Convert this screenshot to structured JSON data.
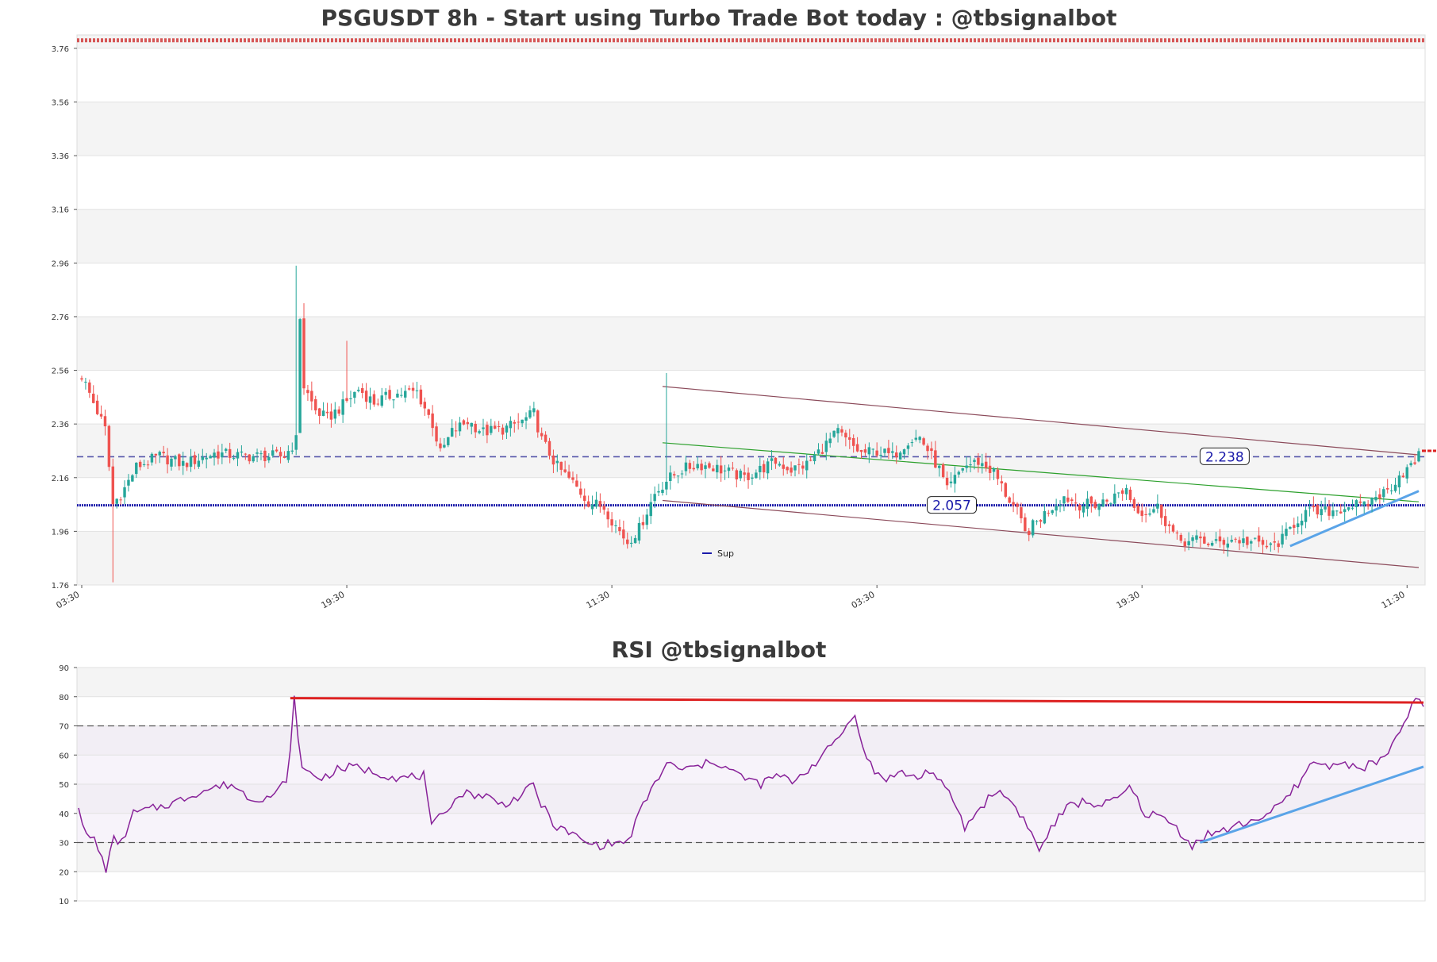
{
  "chart_data": [
    {
      "type": "candlestick",
      "title": "PSGUSDT 8h - Start using Turbo Trade Bot today : @tbsignalbot",
      "ylim": [
        1.76,
        3.81
      ],
      "y_ticks": [
        "1.76",
        "1.96",
        "2.16",
        "2.36",
        "2.56",
        "2.76",
        "2.96",
        "3.16",
        "3.36",
        "3.56",
        "3.76"
      ],
      "x_ticks": [
        {
          "label": "03:30",
          "index": 0
        },
        {
          "label": "19:30",
          "index": 68
        },
        {
          "label": "11:30",
          "index": 136
        },
        {
          "label": "03:30",
          "index": 204
        },
        {
          "label": "19:30",
          "index": 272
        },
        {
          "label": "11:30",
          "index": 340
        }
      ],
      "n_candles": 344,
      "grid": true,
      "background_bands": true,
      "colors": {
        "up": "#26a69a",
        "down": "#ef5350",
        "band": "#f4f4f4"
      },
      "key_points": [
        [
          0,
          2.54
        ],
        [
          6,
          2.34
        ],
        [
          8,
          2.06
        ],
        [
          11,
          2.12
        ],
        [
          14,
          2.2
        ],
        [
          20,
          2.24
        ],
        [
          26,
          2.21
        ],
        [
          34,
          2.25
        ],
        [
          42,
          2.24
        ],
        [
          48,
          2.24
        ],
        [
          52,
          2.24
        ],
        [
          55,
          2.3
        ],
        [
          56,
          2.76
        ],
        [
          57,
          2.5
        ],
        [
          60,
          2.41
        ],
        [
          63,
          2.38
        ],
        [
          67,
          2.43
        ],
        [
          71,
          2.49
        ],
        [
          75,
          2.44
        ],
        [
          80,
          2.47
        ],
        [
          86,
          2.48
        ],
        [
          90,
          2.36
        ],
        [
          92,
          2.25
        ],
        [
          95,
          2.33
        ],
        [
          99,
          2.37
        ],
        [
          103,
          2.33
        ],
        [
          108,
          2.34
        ],
        [
          113,
          2.37
        ],
        [
          116,
          2.4
        ],
        [
          118,
          2.3
        ],
        [
          122,
          2.2
        ],
        [
          126,
          2.14
        ],
        [
          130,
          2.07
        ],
        [
          134,
          2.05
        ],
        [
          137,
          1.98
        ],
        [
          140,
          1.92
        ],
        [
          143,
          1.97
        ],
        [
          147,
          2.1
        ],
        [
          150,
          2.15
        ],
        [
          154,
          2.19
        ],
        [
          158,
          2.21
        ],
        [
          162,
          2.2
        ],
        [
          166,
          2.18
        ],
        [
          170,
          2.16
        ],
        [
          174,
          2.19
        ],
        [
          178,
          2.22
        ],
        [
          182,
          2.19
        ],
        [
          186,
          2.21
        ],
        [
          190,
          2.27
        ],
        [
          194,
          2.33
        ],
        [
          196,
          2.3
        ],
        [
          200,
          2.25
        ],
        [
          204,
          2.26
        ],
        [
          208,
          2.24
        ],
        [
          212,
          2.3
        ],
        [
          215,
          2.31
        ],
        [
          218,
          2.24
        ],
        [
          220,
          2.19
        ],
        [
          222,
          2.11
        ],
        [
          226,
          2.2
        ],
        [
          230,
          2.22
        ],
        [
          234,
          2.18
        ],
        [
          237,
          2.1
        ],
        [
          240,
          2.03
        ],
        [
          242,
          1.95
        ],
        [
          244,
          1.98
        ],
        [
          248,
          2.04
        ],
        [
          252,
          2.09
        ],
        [
          256,
          2.06
        ],
        [
          260,
          2.06
        ],
        [
          264,
          2.08
        ],
        [
          268,
          2.12
        ],
        [
          270,
          2.05
        ],
        [
          273,
          2.03
        ],
        [
          276,
          2.05
        ],
        [
          278,
          2.0
        ],
        [
          281,
          1.93
        ],
        [
          284,
          1.92
        ],
        [
          287,
          1.93
        ],
        [
          290,
          1.91
        ],
        [
          295,
          1.93
        ],
        [
          300,
          1.92
        ],
        [
          305,
          1.9
        ],
        [
          308,
          1.93
        ],
        [
          311,
          1.99
        ],
        [
          314,
          2.03
        ],
        [
          318,
          2.03
        ],
        [
          322,
          2.04
        ],
        [
          326,
          2.06
        ],
        [
          329,
          2.05
        ],
        [
          332,
          2.09
        ],
        [
          335,
          2.11
        ],
        [
          338,
          2.17
        ],
        [
          341,
          2.2
        ],
        [
          343,
          2.24
        ]
      ],
      "spikes": [
        {
          "index": 8,
          "low": 1.77
        },
        {
          "index": 55,
          "high": 2.95
        },
        {
          "index": 57,
          "high": 2.81
        },
        {
          "index": 68,
          "high": 2.67
        },
        {
          "index": 150,
          "high": 2.55
        }
      ],
      "horizontal_lines": [
        {
          "y": 2.238,
          "label": "2.238",
          "label_index": 293,
          "color": "#5555aa",
          "style": "dashed"
        },
        {
          "y": 2.057,
          "label": "2.057",
          "label_index": 223,
          "color": "#1a1aaa",
          "style": "dotted"
        }
      ],
      "trend_lines": [
        {
          "x": [
            149,
            343
          ],
          "y": [
            2.5,
            2.245
          ],
          "color": "#8b4a5a"
        },
        {
          "x": [
            149,
            343
          ],
          "y": [
            2.075,
            1.825
          ],
          "color": "#8b4a5a"
        },
        {
          "x": [
            149,
            343
          ],
          "y": [
            2.29,
            2.07
          ],
          "color": "#2ca02c"
        },
        {
          "x": [
            310,
            343
          ],
          "y": [
            1.905,
            2.11
          ],
          "color": "#5aa4e8"
        }
      ],
      "resistance_marker": {
        "y": 3.79,
        "color": "#cc2222"
      },
      "price_marker": {
        "y": 2.26,
        "color": "#dd2222"
      },
      "legend": {
        "entries": [
          "Sup"
        ],
        "placement": "lower-center"
      }
    },
    {
      "type": "line",
      "title": "RSI @tbsignalbot",
      "ylim": [
        10,
        90
      ],
      "y_ticks": [
        "10",
        "20",
        "30",
        "40",
        "50",
        "60",
        "70",
        "80",
        "90"
      ],
      "hlines": [
        30,
        70
      ],
      "colors": {
        "line": "#882299",
        "band": "#f4f4f4"
      },
      "key_points": [
        [
          0,
          43
        ],
        [
          2,
          32
        ],
        [
          4,
          31
        ],
        [
          7,
          21
        ],
        [
          9,
          31
        ],
        [
          11,
          30
        ],
        [
          14,
          40
        ],
        [
          20,
          42
        ],
        [
          25,
          44
        ],
        [
          30,
          47
        ],
        [
          35,
          49
        ],
        [
          39,
          50
        ],
        [
          44,
          45
        ],
        [
          50,
          46
        ],
        [
          53,
          52
        ],
        [
          54,
          61
        ],
        [
          55,
          79
        ],
        [
          57,
          55
        ],
        [
          62,
          52
        ],
        [
          66,
          55
        ],
        [
          70,
          56
        ],
        [
          76,
          54
        ],
        [
          82,
          52
        ],
        [
          88,
          53
        ],
        [
          90,
          35
        ],
        [
          94,
          42
        ],
        [
          98,
          47
        ],
        [
          104,
          46
        ],
        [
          108,
          43
        ],
        [
          113,
          46
        ],
        [
          116,
          50
        ],
        [
          118,
          43
        ],
        [
          122,
          35
        ],
        [
          126,
          33
        ],
        [
          129,
          30
        ],
        [
          133,
          29
        ],
        [
          137,
          30
        ],
        [
          140,
          30
        ],
        [
          143,
          40
        ],
        [
          146,
          48
        ],
        [
          150,
          57
        ],
        [
          154,
          55
        ],
        [
          158,
          56
        ],
        [
          162,
          58
        ],
        [
          166,
          55
        ],
        [
          170,
          52
        ],
        [
          174,
          50
        ],
        [
          178,
          53
        ],
        [
          182,
          51
        ],
        [
          186,
          55
        ],
        [
          190,
          60
        ],
        [
          193,
          65
        ],
        [
          196,
          70
        ],
        [
          198,
          75
        ],
        [
          200,
          62
        ],
        [
          203,
          54
        ],
        [
          206,
          52
        ],
        [
          210,
          54
        ],
        [
          214,
          52
        ],
        [
          217,
          55
        ],
        [
          220,
          50
        ],
        [
          223,
          45
        ],
        [
          226,
          35
        ],
        [
          230,
          42
        ],
        [
          234,
          48
        ],
        [
          238,
          44
        ],
        [
          242,
          36
        ],
        [
          245,
          27
        ],
        [
          248,
          35
        ],
        [
          252,
          42
        ],
        [
          256,
          44
        ],
        [
          260,
          43
        ],
        [
          264,
          44
        ],
        [
          268,
          49
        ],
        [
          272,
          40
        ],
        [
          276,
          39
        ],
        [
          280,
          35
        ],
        [
          284,
          29
        ],
        [
          288,
          33
        ],
        [
          292,
          34
        ],
        [
          296,
          36
        ],
        [
          300,
          38
        ],
        [
          304,
          40
        ],
        [
          308,
          45
        ],
        [
          312,
          52
        ],
        [
          315,
          58
        ],
        [
          318,
          56
        ],
        [
          322,
          58
        ],
        [
          326,
          55
        ],
        [
          330,
          57
        ],
        [
          334,
          60
        ],
        [
          337,
          68
        ],
        [
          340,
          77
        ],
        [
          342,
          79
        ],
        [
          343,
          77
        ]
      ],
      "trend_lines": [
        {
          "x": [
            54,
            343
          ],
          "y": [
            79.5,
            78
          ],
          "color": "#dd2222"
        },
        {
          "x": [
            286,
            343
          ],
          "y": [
            30,
            56
          ],
          "color": "#5aa4e8"
        }
      ]
    }
  ]
}
